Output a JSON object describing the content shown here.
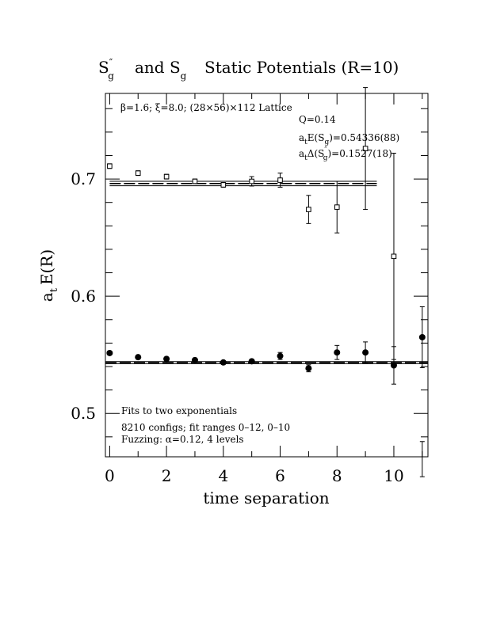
{
  "chart_data": {
    "type": "scatter",
    "title": {
      "main_a": "S",
      "main_a_sup": "″",
      "main_a_sub": "g",
      "middle": "and S",
      "middle_sub": "g",
      "rest": "Static Potentials (R=10)"
    },
    "xlabel": "time separation",
    "ylabel": {
      "base": "a",
      "sub": "t",
      "rest": "E(R)"
    },
    "xlim": [
      -0.15,
      11.2
    ],
    "ylim": [
      0.463,
      0.773
    ],
    "x_ticks": [
      0,
      2,
      4,
      6,
      8,
      10
    ],
    "x_tick_labels": [
      "0",
      "2",
      "4",
      "6",
      "8",
      "10"
    ],
    "y_ticks": [
      0.5,
      0.6,
      0.7
    ],
    "y_tick_labels": [
      "0.5",
      "0.6",
      "0.7"
    ],
    "annotations": {
      "lattice": "β=1.6; ξ=8.0; (28×56)×112 Lattice",
      "q": "Q=0.14",
      "fit_sg": {
        "prefix": "a",
        "prefix_sub": "t",
        "body": "E(S",
        "body_sub": "g",
        "value": ")=0.54336(88)"
      },
      "fit_delta": {
        "prefix": "a",
        "prefix_sub": "t",
        "body": "Δ(S",
        "body_sup": "″",
        "body_sub": "g",
        "value": ")=0.1527(18)"
      },
      "method_1": "Fits to two exponentials",
      "method_2": "8210 configs; fit ranges 0–12, 0–10",
      "method_3": "Fuzzing: α=0.12, 4 levels"
    },
    "series": [
      {
        "name": "S″g",
        "marker": "open-square",
        "x": [
          0,
          1,
          2,
          3,
          4,
          5,
          6,
          7,
          8,
          9,
          10
        ],
        "y": [
          0.711,
          0.705,
          0.702,
          0.698,
          0.695,
          0.698,
          0.699,
          0.674,
          0.676,
          0.726,
          0.634
        ],
        "err": [
          0.002,
          0.002,
          0.002,
          0.002,
          0.002,
          0.004,
          0.006,
          0.012,
          0.022,
          0.052,
          0.088
        ]
      },
      {
        "name": "Sg",
        "marker": "filled-circle",
        "x": [
          0,
          1,
          2,
          3,
          4,
          5,
          6,
          7,
          8,
          9,
          10,
          11
        ],
        "y": [
          0.5515,
          0.548,
          0.5465,
          0.5455,
          0.5435,
          0.5445,
          0.549,
          0.5385,
          0.552,
          0.552,
          0.541,
          0.565
        ],
        "err": [
          0.0015,
          0.0015,
          0.0015,
          0.0015,
          0.0015,
          0.0015,
          0.003,
          0.003,
          0.006,
          0.009,
          0.016,
          0.026
        ]
      },
      {
        "name": "S″g point at t=11",
        "marker": "errorbar-only",
        "x": [
          11
        ],
        "y": [
          0.461
        ],
        "err": [
          0.015
        ]
      }
    ],
    "fit_bands": [
      {
        "series": "S″g",
        "center": 0.6961,
        "halfwidth": 0.0019,
        "x_range": [
          0,
          9.4
        ]
      },
      {
        "series": "Sg",
        "center": 0.54336,
        "halfwidth": 0.00088,
        "x_range": [
          -0.15,
          11.2
        ]
      }
    ],
    "grid": false
  }
}
